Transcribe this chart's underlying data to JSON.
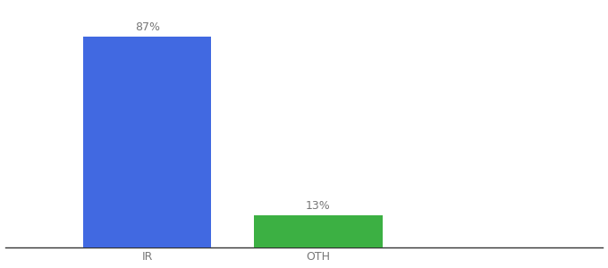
{
  "categories": [
    "IR",
    "OTH"
  ],
  "values": [
    87,
    13
  ],
  "bar_colors": [
    "#4169e1",
    "#3cb043"
  ],
  "bar_labels": [
    "87%",
    "13%"
  ],
  "background_color": "#ffffff",
  "text_color": "#777777",
  "ylim": [
    0,
    100
  ],
  "figsize": [
    6.8,
    3.0
  ],
  "dpi": 100,
  "bar_width": 0.18,
  "x_positions": [
    0.28,
    0.52
  ],
  "xlim": [
    0.08,
    0.92
  ],
  "label_fontsize": 9,
  "tick_fontsize": 9
}
